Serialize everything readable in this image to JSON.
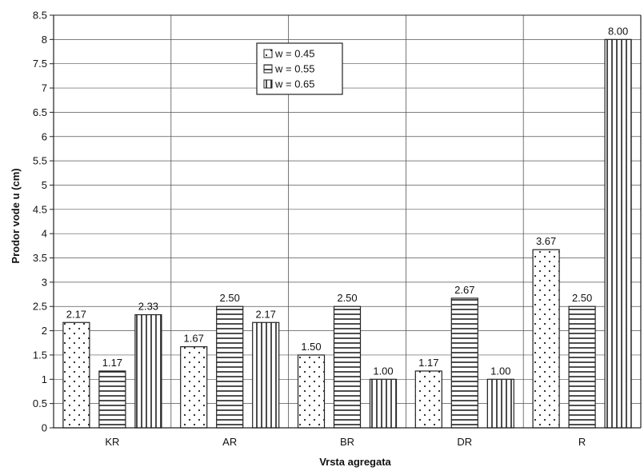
{
  "chart_data": {
    "type": "bar",
    "categories": [
      "KR",
      "AR",
      "BR",
      "DR",
      "R"
    ],
    "series": [
      {
        "name": "w = 0.45",
        "values": [
          2.17,
          1.67,
          1.5,
          1.17,
          3.67
        ],
        "labels": [
          "2.17",
          "1.67",
          "1.50",
          "1.17",
          "3.67"
        ],
        "pattern": "dots"
      },
      {
        "name": "w = 0.55",
        "values": [
          1.17,
          2.5,
          2.5,
          2.67,
          2.5
        ],
        "labels": [
          "1.17",
          "2.50",
          "2.50",
          "2.67",
          "2.50"
        ],
        "pattern": "horizontal-lines"
      },
      {
        "name": "w = 0.65",
        "values": [
          2.33,
          2.17,
          1.0,
          1.0,
          8.0
        ],
        "labels": [
          "2.33",
          "2.17",
          "1.00",
          "1.00",
          "8.00"
        ],
        "pattern": "vertical-lines"
      }
    ],
    "title": "",
    "xlabel": "Vrsta agregata",
    "ylabel": "Prodor vode u (cm)",
    "ylim": [
      0,
      8.5
    ],
    "yticks": [
      "0",
      "0.5",
      "1",
      "1.5",
      "2",
      "2.5",
      "3",
      "3.5",
      "4",
      "4.5",
      "5",
      "5.5",
      "6",
      "6.5",
      "7",
      "7.5",
      "8",
      "8.5"
    ],
    "grid": true,
    "legend_position": "top-center"
  },
  "colors": {
    "bar_fill": "#ffffff",
    "bar_stroke": "#222222",
    "grid": "#555555"
  }
}
